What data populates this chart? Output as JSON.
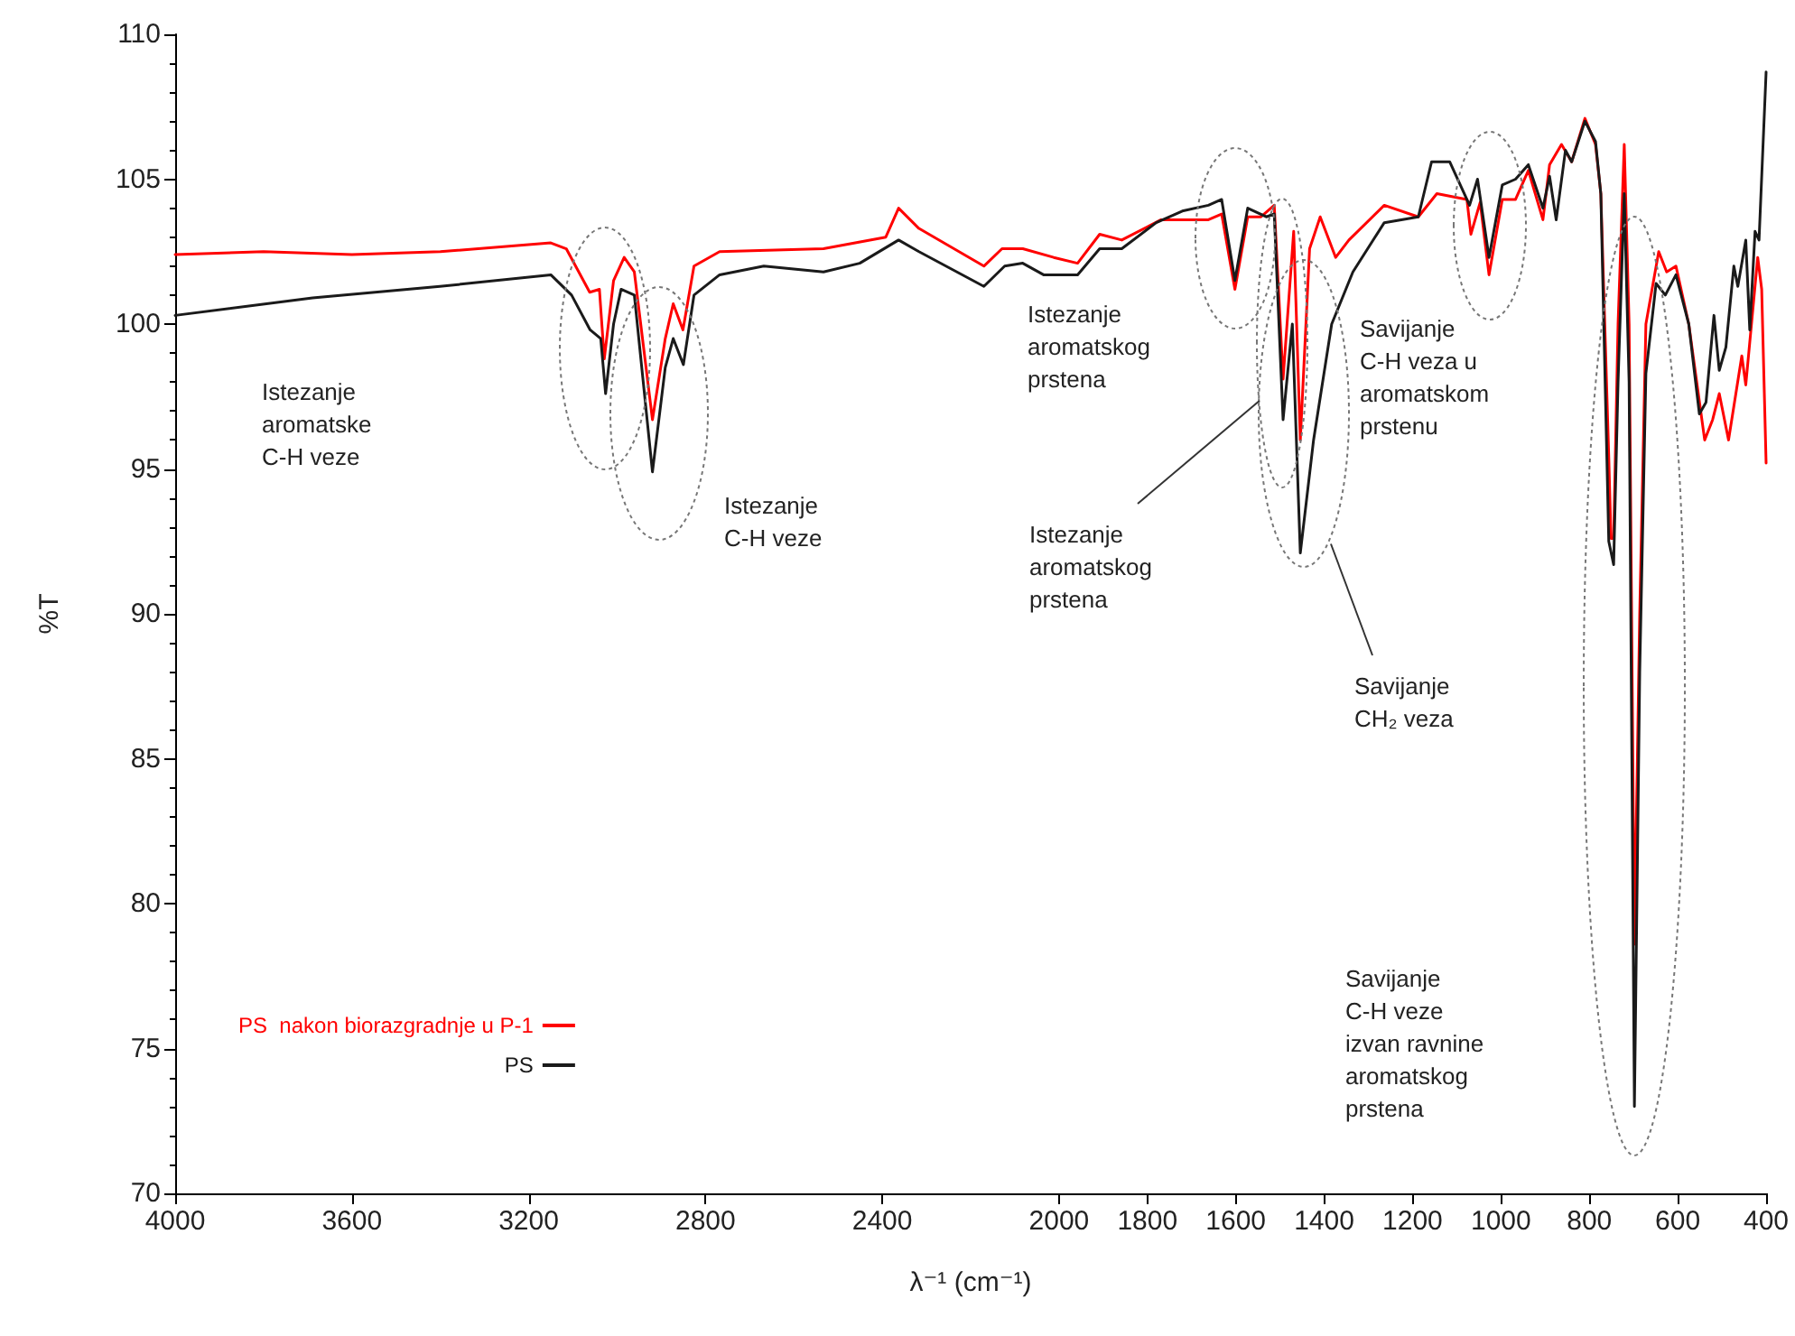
{
  "chart_data": {
    "type": "line",
    "xlabel": "λ⁻¹ (cm⁻¹)",
    "ylabel": "%T",
    "xlim": [
      4000,
      400
    ],
    "xticks": [
      4000,
      3600,
      3200,
      2800,
      2400,
      2000,
      1800,
      1600,
      1400,
      1200,
      1000,
      800,
      600,
      400
    ],
    "ylim": [
      70,
      110
    ],
    "yticks": [
      70,
      75,
      80,
      85,
      90,
      95,
      100,
      105,
      110
    ],
    "legend": "bottom left",
    "marker": "none",
    "line_style": "solid",
    "series": [
      {
        "name": "PS  nakon biorazgradnje u P-1",
        "color": "#ff0000",
        "x": [
          4000,
          3800,
          3600,
          3400,
          3150,
          3115,
          3062,
          3040,
          3029,
          3008,
          2984,
          2961,
          2920,
          2891,
          2873,
          2851,
          2826,
          2768,
          2533,
          2392,
          2363,
          2317,
          2170,
          2129,
          2082,
          2012,
          1958,
          1908,
          1858,
          1769,
          1662,
          1632,
          1602,
          1573,
          1543,
          1513,
          1493,
          1469,
          1454,
          1433,
          1409,
          1374,
          1344,
          1264,
          1187,
          1145,
          1077,
          1068,
          1047,
          1027,
          997,
          967,
          938,
          905,
          890,
          863,
          840,
          810,
          786,
          774,
          756,
          751,
          745,
          735,
          721,
          710,
          698,
          686,
          672,
          643,
          625,
          604,
          575,
          539,
          521,
          506,
          485,
          455,
          446,
          419,
          410,
          400
        ],
        "values": [
          102.4,
          102.5,
          102.4,
          102.5,
          102.8,
          102.6,
          101.1,
          101.2,
          98.8,
          101.5,
          102.3,
          101.8,
          96.7,
          99.5,
          100.7,
          99.8,
          102.0,
          102.5,
          102.6,
          103.0,
          104.0,
          103.3,
          102.0,
          102.6,
          102.6,
          102.3,
          102.1,
          103.1,
          102.9,
          103.6,
          103.6,
          103.8,
          101.2,
          103.7,
          103.7,
          104.1,
          98.1,
          103.2,
          96.0,
          102.6,
          103.7,
          102.3,
          102.9,
          104.1,
          103.7,
          104.5,
          104.3,
          103.1,
          104.2,
          101.7,
          104.3,
          104.3,
          105.3,
          103.6,
          105.5,
          106.2,
          105.6,
          107.1,
          106.2,
          104.5,
          95.4,
          92.6,
          92.6,
          100.0,
          106.2,
          100.0,
          78.6,
          90.0,
          100.0,
          102.5,
          101.8,
          102.0,
          100.0,
          96.0,
          96.7,
          97.6,
          96.0,
          98.9,
          97.9,
          102.3,
          101.2,
          95.2
        ]
      },
      {
        "name": "PS",
        "color": "#1a1a1a",
        "x": [
          4000,
          3689,
          3401,
          3150,
          3103,
          3061,
          3037,
          3026,
          3008,
          2991,
          2961,
          2920,
          2891,
          2873,
          2850,
          2826,
          2768,
          2668,
          2533,
          2451,
          2363,
          2317,
          2170,
          2123,
          2082,
          2035,
          1958,
          1908,
          1858,
          1780,
          1721,
          1662,
          1632,
          1602,
          1573,
          1531,
          1513,
          1493,
          1472,
          1454,
          1424,
          1383,
          1335,
          1264,
          1187,
          1157,
          1116,
          1071,
          1053,
          1027,
          997,
          967,
          938,
          905,
          890,
          875,
          854,
          840,
          810,
          786,
          774,
          756,
          745,
          735,
          721,
          710,
          698,
          686,
          672,
          649,
          628,
          604,
          575,
          551,
          536,
          518,
          506,
          491,
          473,
          464,
          446,
          437,
          425,
          416,
          400
        ],
        "values": [
          100.3,
          100.9,
          101.3,
          101.7,
          101.0,
          99.8,
          99.5,
          97.6,
          100.0,
          101.2,
          101.0,
          94.9,
          98.5,
          99.5,
          98.6,
          101.0,
          101.7,
          102.0,
          101.8,
          102.1,
          102.9,
          102.5,
          101.3,
          102.0,
          102.1,
          101.7,
          101.7,
          102.6,
          102.6,
          103.5,
          103.9,
          104.1,
          104.3,
          101.5,
          104.0,
          103.7,
          103.8,
          96.7,
          100.0,
          92.1,
          96.0,
          100.0,
          101.8,
          103.5,
          103.7,
          105.6,
          105.6,
          104.1,
          105.0,
          102.3,
          104.8,
          105.0,
          105.5,
          104.0,
          105.1,
          103.6,
          106.0,
          105.6,
          107.0,
          106.3,
          104.5,
          92.5,
          91.7,
          98.0,
          104.5,
          98.0,
          73.0,
          88.0,
          98.3,
          101.4,
          101.0,
          101.7,
          100.0,
          96.9,
          97.3,
          100.3,
          98.4,
          99.2,
          102.0,
          101.3,
          102.9,
          99.8,
          103.2,
          102.9,
          108.7
        ]
      }
    ],
    "annotations": [
      "Istezanje\naromatske\nC-H veze",
      "Istezanje\nC-H veze",
      "Istezanje\naromatskog\nprstena",
      "Istezanje\naromatskog\nprstena",
      "Savijanje\nCH₂ veza",
      "Savijanje\nC-H veza u\naromatskom\nprstenu",
      "Savijanje\nC-H veze\nizvan ravnine\naromatskog\nprstena"
    ]
  }
}
